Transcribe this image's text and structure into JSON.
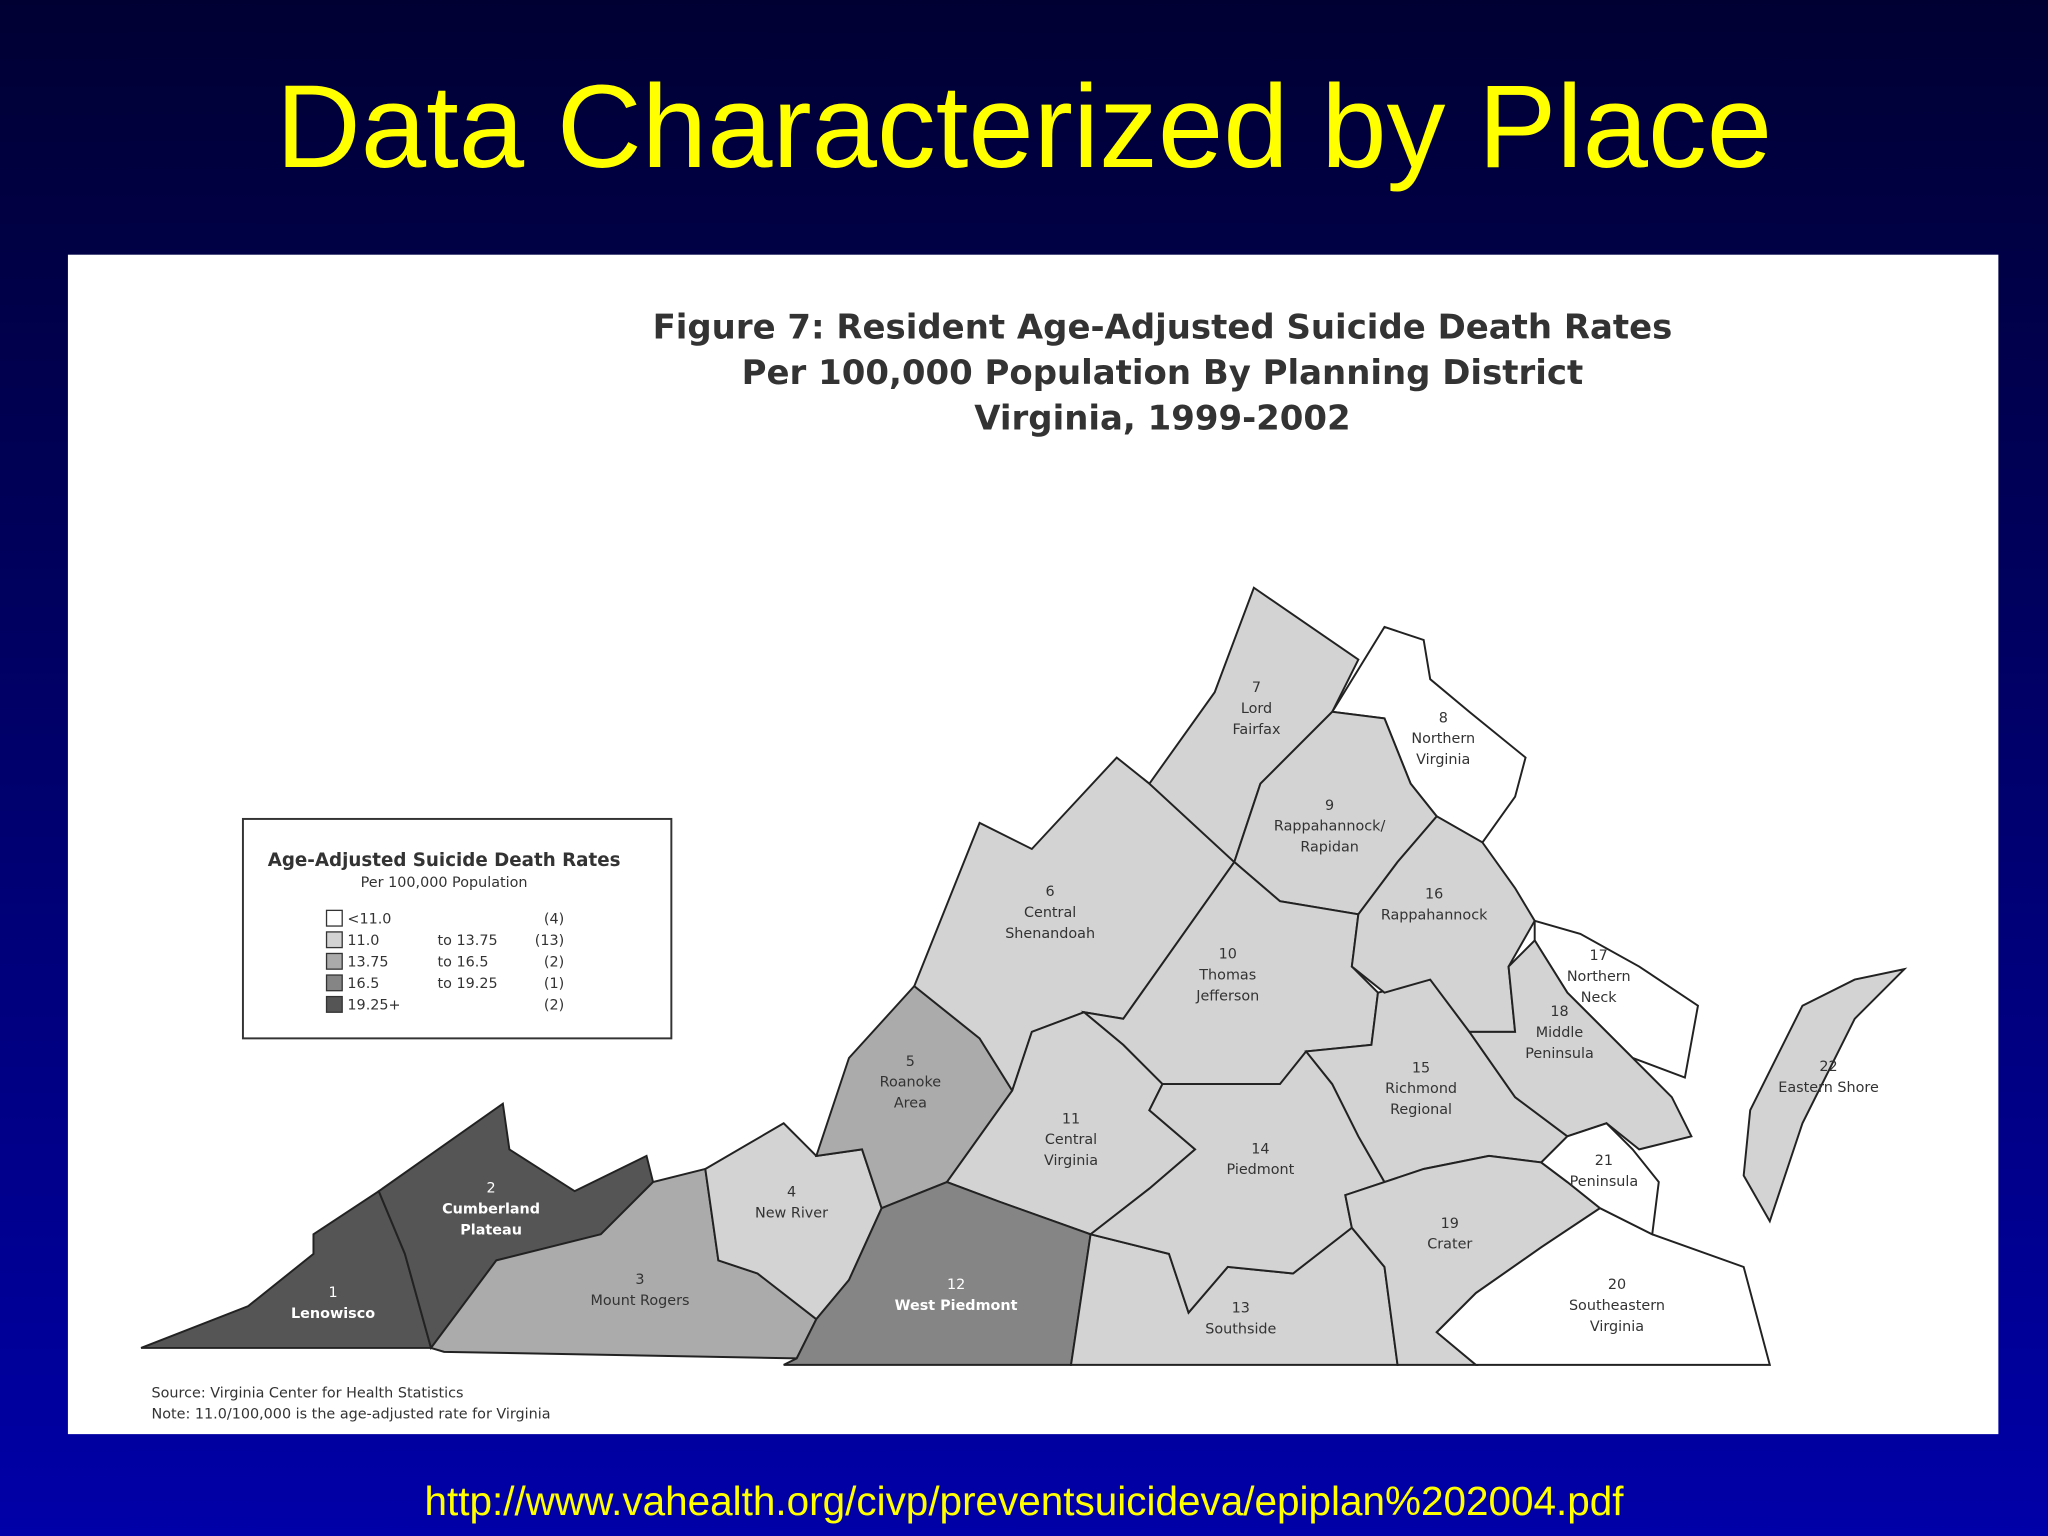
{
  "title": "Data Characterized by Place",
  "figure": {
    "title_lines": [
      "Figure 7: Resident Age-Adjusted Suicide Death Rates",
      "Per 100,000 Population By Planning District",
      "Virginia, 1999-2002"
    ],
    "legend": {
      "title": "Age-Adjusted Suicide Death Rates",
      "subtitle": "Per 100,000 Population",
      "rows": [
        {
          "from": "<11.0",
          "to": "",
          "count": "(4)",
          "color": "#ffffff"
        },
        {
          "from": "11.0",
          "to": "to 13.75",
          "count": "(13)",
          "color": "#d3d3d3"
        },
        {
          "from": "13.75",
          "to": "to 16.5",
          "count": "(2)",
          "color": "#ababab"
        },
        {
          "from": "16.5",
          "to": "to 19.25",
          "count": "(1)",
          "color": "#858585"
        },
        {
          "from": "19.25+",
          "to": "",
          "count": "(2)",
          "color": "#555555"
        }
      ]
    },
    "districts": [
      {
        "number": "1",
        "name": [
          "Lenowisco"
        ],
        "color": "#555555"
      },
      {
        "number": "2",
        "name": [
          "Cumberland",
          "Plateau"
        ],
        "color": "#555555"
      },
      {
        "number": "3",
        "name": [
          "Mount Rogers"
        ],
        "color": "#ababab"
      },
      {
        "number": "4",
        "name": [
          "New River"
        ],
        "color": "#d3d3d3"
      },
      {
        "number": "5",
        "name": [
          "Roanoke",
          "Area"
        ],
        "color": "#ababab"
      },
      {
        "number": "6",
        "name": [
          "Central",
          "Shenandoah"
        ],
        "color": "#d3d3d3"
      },
      {
        "number": "7",
        "name": [
          "Lord",
          "Fairfax"
        ],
        "color": "#d3d3d3"
      },
      {
        "number": "8",
        "name": [
          "Northern",
          "Virginia"
        ],
        "color": "#ffffff"
      },
      {
        "number": "9",
        "name": [
          "Rappahannock/",
          "Rapidan"
        ],
        "color": "#d3d3d3"
      },
      {
        "number": "10",
        "name": [
          "Thomas",
          "Jefferson"
        ],
        "color": "#d3d3d3"
      },
      {
        "number": "11",
        "name": [
          "Central",
          "Virginia"
        ],
        "color": "#d3d3d3"
      },
      {
        "number": "12",
        "name": [
          "West Piedmont"
        ],
        "color": "#858585"
      },
      {
        "number": "13",
        "name": [
          "Southside"
        ],
        "color": "#d3d3d3"
      },
      {
        "number": "14",
        "name": [
          "Piedmont"
        ],
        "color": "#d3d3d3"
      },
      {
        "number": "15",
        "name": [
          "Richmond",
          "Regional"
        ],
        "color": "#d3d3d3"
      },
      {
        "number": "16",
        "name": [
          "Rappahannock"
        ],
        "color": "#d3d3d3"
      },
      {
        "number": "17",
        "name": [
          "Northern",
          "Neck"
        ],
        "color": "#ffffff"
      },
      {
        "number": "18",
        "name": [
          "Middle",
          "Peninsula"
        ],
        "color": "#d3d3d3"
      },
      {
        "number": "19",
        "name": [
          "Crater"
        ],
        "color": "#d3d3d3"
      },
      {
        "number": "20",
        "name": [
          "Southeastern",
          "Virginia"
        ],
        "color": "#ffffff"
      },
      {
        "number": "21",
        "name": [
          "Peninsula"
        ],
        "color": "#ffffff"
      },
      {
        "number": "22",
        "name": [
          "Eastern Shore"
        ],
        "color": "#d3d3d3"
      }
    ],
    "source": "Source: Virginia Center for Health Statistics",
    "note": "Note: 11.0/100,000 is the age-adjusted rate for Virginia"
  },
  "url": "http://www.vahealth.org/civp/preventsuicideva/epiplan%202004.pdf"
}
